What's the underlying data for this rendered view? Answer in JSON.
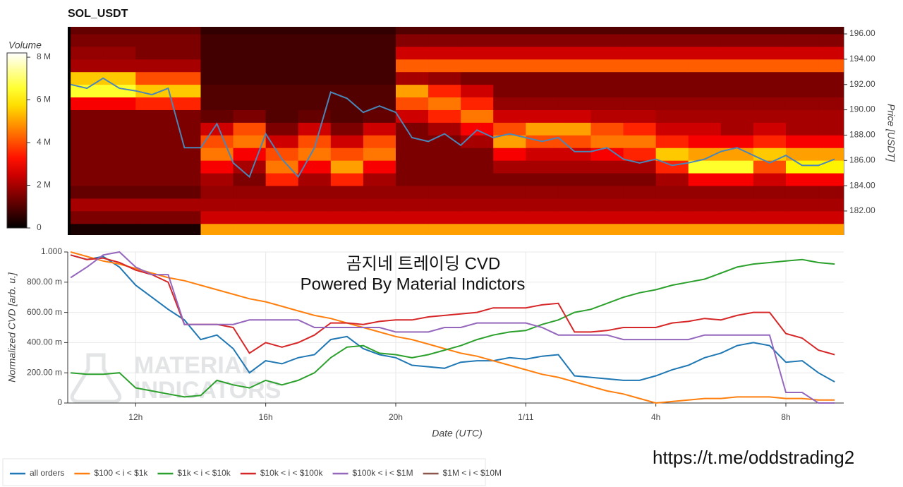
{
  "chart_data": [
    {
      "type": "heatmap",
      "title": "SOL_USDT",
      "xlim": [
        -14.09,
        9.78
      ],
      "ylim": [
        180.1,
        196.56
      ],
      "yticks": [
        {
          "value": 182,
          "label": "182.00"
        },
        {
          "value": 184,
          "label": "184.00"
        },
        {
          "value": 186,
          "label": "186.00"
        },
        {
          "value": 188,
          "label": "188.00"
        },
        {
          "value": 190,
          "label": "190.00"
        },
        {
          "value": 192,
          "label": "192.00"
        },
        {
          "value": 194,
          "label": "194.00"
        },
        {
          "value": 196,
          "label": "196.00"
        }
      ],
      "y_axis_label": "Price [USDT]",
      "y_axis_position": "right",
      "colormap": "hot",
      "colorbar": {
        "label": "Volume",
        "lim": [
          0,
          8.2
        ],
        "ticks": [
          0,
          {
            "value": 2,
            "label": "2 M"
          },
          {
            "value": 4,
            "label": "4 M"
          },
          {
            "value": 6,
            "label": "6 M"
          },
          {
            "value": 8,
            "label": "8 M"
          }
        ]
      },
      "x_bins": [
        -14,
        -13,
        -12,
        -11,
        -10,
        -9,
        -8,
        -7,
        -6,
        -5,
        -4,
        -3,
        -2,
        -1,
        0,
        1,
        2,
        3,
        4,
        5,
        6,
        7,
        8,
        9,
        10
      ],
      "y_bins": [
        180,
        181,
        182,
        183,
        184,
        185,
        186,
        187,
        188,
        189,
        190,
        191,
        192,
        193,
        194,
        195,
        196,
        197
      ],
      "z": [
        [
          0.3,
          0.3,
          0.3,
          0.3,
          5.0,
          5.0,
          5.0,
          5.0,
          5.0,
          5.0,
          5.0,
          5.0,
          5.0,
          5.0,
          5.0,
          5.0,
          5.0,
          5.0,
          5.0,
          5.0,
          5.0,
          5.0,
          5.0,
          5.0
        ],
        [
          1.5,
          1.5,
          1.5,
          1.5,
          2.5,
          2.5,
          2.5,
          2.5,
          2.5,
          2.5,
          2.5,
          2.5,
          2.5,
          2.5,
          2.5,
          2.5,
          2.5,
          2.5,
          2.5,
          2.5,
          2.5,
          2.5,
          2.5,
          2.5
        ],
        [
          2.0,
          2.0,
          2.0,
          2.0,
          2.0,
          2.0,
          2.0,
          2.0,
          2.0,
          2.0,
          2.0,
          2.0,
          2.0,
          2.0,
          2.0,
          2.0,
          2.0,
          2.0,
          2.0,
          2.0,
          2.0,
          2.0,
          2.0,
          2.0
        ],
        [
          1.2,
          1.2,
          1.2,
          1.2,
          1.8,
          1.8,
          1.8,
          1.8,
          1.8,
          1.8,
          1.8,
          1.8,
          1.8,
          1.8,
          1.8,
          1.8,
          1.8,
          1.8,
          1.8,
          1.8,
          1.8,
          1.8,
          1.8,
          1.8
        ],
        [
          1.5,
          1.5,
          1.5,
          1.5,
          2.0,
          1.5,
          3.5,
          2.0,
          3.5,
          2.0,
          1.5,
          1.5,
          1.5,
          1.5,
          1.5,
          1.5,
          1.5,
          1.5,
          2.0,
          3.0,
          3.0,
          2.5,
          3.0,
          3.0
        ],
        [
          1.5,
          1.5,
          1.5,
          1.5,
          3.0,
          2.0,
          4.5,
          3.0,
          5.0,
          3.0,
          1.5,
          1.5,
          1.5,
          2.0,
          2.0,
          2.0,
          2.0,
          2.0,
          3.5,
          6.5,
          6.5,
          4.0,
          6.0,
          6.0
        ],
        [
          1.5,
          1.5,
          1.5,
          1.5,
          4.5,
          3.0,
          4.0,
          4.5,
          4.0,
          4.5,
          1.5,
          1.5,
          1.5,
          3.0,
          2.5,
          2.5,
          3.0,
          3.5,
          5.5,
          5.0,
          5.0,
          5.5,
          5.0,
          5.0
        ],
        [
          1.5,
          1.5,
          1.5,
          1.5,
          4.0,
          4.5,
          2.5,
          4.0,
          2.5,
          4.0,
          1.5,
          1.5,
          2.0,
          5.0,
          4.0,
          4.0,
          4.5,
          4.5,
          3.5,
          3.0,
          3.0,
          3.5,
          3.0,
          3.0
        ],
        [
          1.5,
          1.5,
          1.5,
          1.5,
          2.5,
          4.0,
          1.5,
          2.5,
          1.5,
          2.5,
          1.5,
          2.0,
          3.0,
          4.0,
          5.0,
          5.0,
          4.0,
          3.5,
          2.5,
          2.5,
          2.0,
          2.5,
          2.0,
          2.0
        ],
        [
          1.5,
          1.5,
          1.5,
          1.5,
          1.2,
          1.5,
          1.0,
          1.2,
          1.0,
          1.2,
          2.5,
          3.5,
          4.5,
          2.5,
          2.5,
          2.5,
          2.2,
          2.2,
          2.0,
          2.0,
          2.0,
          2.0,
          2.0,
          2.0
        ],
        [
          3.0,
          3.0,
          3.5,
          3.5,
          1.0,
          1.0,
          1.0,
          1.0,
          1.0,
          1.0,
          4.0,
          4.5,
          3.5,
          1.8,
          1.8,
          1.8,
          1.8,
          1.8,
          1.8,
          1.8,
          1.8,
          1.8,
          1.8,
          1.8
        ],
        [
          6.5,
          6.5,
          5.5,
          5.5,
          1.0,
          1.0,
          1.0,
          1.0,
          1.0,
          1.0,
          5.0,
          3.5,
          2.5,
          1.5,
          1.5,
          1.5,
          1.5,
          1.5,
          1.5,
          1.5,
          1.5,
          1.5,
          1.5,
          1.5
        ],
        [
          5.5,
          5.5,
          4.0,
          4.0,
          0.8,
          0.8,
          0.8,
          0.8,
          0.8,
          0.8,
          2.0,
          1.8,
          1.5,
          1.5,
          1.5,
          1.5,
          1.5,
          1.5,
          1.5,
          1.5,
          1.5,
          1.5,
          1.5,
          1.5
        ],
        [
          2.0,
          2.0,
          2.0,
          2.0,
          0.8,
          0.8,
          0.8,
          0.8,
          0.8,
          0.8,
          4.2,
          4.2,
          4.2,
          4.2,
          4.2,
          4.2,
          4.2,
          4.2,
          4.2,
          4.2,
          4.2,
          4.2,
          4.2,
          4.2
        ],
        [
          1.8,
          1.8,
          1.5,
          1.5,
          0.8,
          0.8,
          0.8,
          0.8,
          0.8,
          0.8,
          2.5,
          2.5,
          2.5,
          2.5,
          2.5,
          2.5,
          2.5,
          2.5,
          2.5,
          2.5,
          2.5,
          2.5,
          2.5,
          2.5
        ],
        [
          1.5,
          1.5,
          1.5,
          1.5,
          0.8,
          0.8,
          0.8,
          0.8,
          0.8,
          0.8,
          1.6,
          1.6,
          1.6,
          1.6,
          1.6,
          1.6,
          1.6,
          1.6,
          1.6,
          1.6,
          1.6,
          1.6,
          1.6,
          1.6
        ],
        [
          1.2,
          1.2,
          1.2,
          1.2,
          0.6,
          0.6,
          0.6,
          0.6,
          0.6,
          0.6,
          1.0,
          1.0,
          1.0,
          1.0,
          1.0,
          1.0,
          1.0,
          1.0,
          1.0,
          1.0,
          1.0,
          1.0,
          1.0,
          1.0
        ]
      ],
      "x": [
        -14,
        -13.5,
        -13,
        -12.5,
        -12,
        -11.5,
        -11,
        -10.5,
        -10,
        -9.5,
        -9,
        -8.5,
        -8,
        -7.5,
        -7,
        -6.5,
        -6,
        -5.5,
        -5,
        -4.5,
        -4,
        -3.5,
        -3,
        -2.5,
        -2,
        -1.5,
        -1,
        -0.5,
        0,
        0.5,
        1,
        1.5,
        2,
        2.5,
        3,
        3.5,
        4,
        4.5,
        5,
        5.5,
        6,
        6.5,
        7,
        7.5,
        8,
        8.5,
        9,
        9.5
      ],
      "values": [
        192.0,
        191.7,
        192.5,
        191.7,
        191.5,
        191.2,
        191.7,
        187.0,
        187.0,
        188.9,
        185.8,
        184.7,
        188.1,
        186.1,
        184.7,
        187.0,
        191.4,
        190.9,
        189.8,
        190.3,
        189.8,
        187.8,
        187.5,
        188.1,
        187.2,
        188.4,
        187.8,
        188.1,
        187.8,
        187.5,
        187.8,
        186.7,
        186.7,
        187.0,
        186.1,
        185.8,
        186.1,
        185.6,
        185.8,
        186.1,
        186.7,
        187.0,
        186.4,
        185.8,
        186.4,
        185.6,
        185.6,
        186.1
      ],
      "color": "#4a86b8"
    },
    {
      "type": "line",
      "title": "곰지네 트레이딩 CVD",
      "subtitle": "Powered By Material Indictors",
      "watermark": [
        "MATERIAL",
        "INDICATORS"
      ],
      "x_axis_label": "Date (UTC)",
      "y_axis_label": "Normalized CVD [arb. u.]",
      "xlim": [
        -14.09,
        9.78
      ],
      "ylim": [
        0,
        1
      ],
      "xticks": [
        {
          "value": -12,
          "label": "12h"
        },
        {
          "value": -8,
          "label": "16h"
        },
        {
          "value": -4,
          "label": "20h"
        },
        {
          "value": 0,
          "label": "1/11"
        },
        {
          "value": 4,
          "label": "4h"
        },
        {
          "value": 8,
          "label": "8h"
        }
      ],
      "yticks": [
        0,
        {
          "value": 0.2,
          "label": "200.00 m"
        },
        {
          "value": 0.4,
          "label": "400.00 m"
        },
        {
          "value": 0.6,
          "label": "600.00 m"
        },
        {
          "value": 0.8,
          "label": "800.00 m"
        },
        {
          "value": 1,
          "label": "1.000"
        }
      ],
      "grid": true,
      "legend": "bottom-left",
      "x": [
        -14,
        -13.5,
        -13,
        -12.5,
        -12,
        -11.5,
        -11,
        -10.5,
        -10,
        -9.5,
        -9,
        -8.5,
        -8,
        -7.5,
        -7,
        -6.5,
        -6,
        -5.5,
        -5,
        -4.5,
        -4,
        -3.5,
        -3,
        -2.5,
        -2,
        -1.5,
        -1,
        -0.5,
        0,
        0.5,
        1,
        1.5,
        2,
        2.5,
        3,
        3.5,
        4,
        4.5,
        5,
        5.5,
        6,
        6.5,
        7,
        7.5,
        8,
        8.5,
        9,
        9.5
      ],
      "series": [
        {
          "name": "all orders",
          "color": "#1f77b4",
          "values": [
            0.98,
            0.95,
            0.97,
            0.9,
            0.78,
            0.7,
            0.62,
            0.55,
            0.42,
            0.45,
            0.36,
            0.2,
            0.28,
            0.26,
            0.3,
            0.32,
            0.42,
            0.44,
            0.36,
            0.32,
            0.3,
            0.25,
            0.24,
            0.23,
            0.27,
            0.28,
            0.28,
            0.3,
            0.29,
            0.31,
            0.32,
            0.18,
            0.17,
            0.16,
            0.15,
            0.15,
            0.18,
            0.22,
            0.25,
            0.3,
            0.33,
            0.38,
            0.4,
            0.38,
            0.27,
            0.28,
            0.2,
            0.14
          ]
        },
        {
          "name": "$100 < i < $1k",
          "color": "#ff7f0e",
          "values": [
            1.0,
            0.97,
            0.94,
            0.92,
            0.89,
            0.86,
            0.83,
            0.81,
            0.78,
            0.75,
            0.72,
            0.69,
            0.67,
            0.64,
            0.61,
            0.58,
            0.56,
            0.53,
            0.5,
            0.47,
            0.44,
            0.42,
            0.39,
            0.36,
            0.33,
            0.31,
            0.28,
            0.25,
            0.22,
            0.19,
            0.17,
            0.14,
            0.11,
            0.08,
            0.06,
            0.03,
            0.0,
            0.01,
            0.02,
            0.03,
            0.03,
            0.04,
            0.04,
            0.04,
            0.03,
            0.03,
            0.02,
            0.02
          ]
        },
        {
          "name": "$1k < i < $10k",
          "color": "#2ca02c",
          "values": [
            0.2,
            0.19,
            0.19,
            0.2,
            0.1,
            0.08,
            0.06,
            0.04,
            0.05,
            0.15,
            0.12,
            0.1,
            0.15,
            0.12,
            0.15,
            0.2,
            0.3,
            0.37,
            0.38,
            0.33,
            0.32,
            0.3,
            0.32,
            0.35,
            0.38,
            0.42,
            0.45,
            0.47,
            0.48,
            0.52,
            0.55,
            0.6,
            0.62,
            0.66,
            0.7,
            0.73,
            0.75,
            0.78,
            0.8,
            0.82,
            0.86,
            0.9,
            0.92,
            0.93,
            0.94,
            0.95,
            0.93,
            0.92
          ]
        },
        {
          "name": "$10k < i < $100k",
          "color": "#d62728",
          "values": [
            0.98,
            0.95,
            0.96,
            0.93,
            0.88,
            0.85,
            0.8,
            0.52,
            0.52,
            0.52,
            0.5,
            0.33,
            0.4,
            0.37,
            0.4,
            0.45,
            0.53,
            0.53,
            0.52,
            0.54,
            0.55,
            0.55,
            0.57,
            0.58,
            0.59,
            0.6,
            0.63,
            0.63,
            0.63,
            0.65,
            0.66,
            0.47,
            0.47,
            0.48,
            0.5,
            0.5,
            0.5,
            0.53,
            0.54,
            0.56,
            0.55,
            0.58,
            0.6,
            0.6,
            0.46,
            0.43,
            0.35,
            0.32
          ]
        },
        {
          "name": "$100k < i < $1M",
          "color": "#9467bd",
          "values": [
            0.83,
            0.9,
            0.98,
            1.0,
            0.9,
            0.85,
            0.85,
            0.52,
            0.52,
            0.52,
            0.52,
            0.55,
            0.55,
            0.55,
            0.55,
            0.5,
            0.5,
            0.5,
            0.5,
            0.5,
            0.47,
            0.47,
            0.47,
            0.5,
            0.5,
            0.53,
            0.53,
            0.53,
            0.53,
            0.5,
            0.45,
            0.45,
            0.45,
            0.45,
            0.42,
            0.42,
            0.42,
            0.42,
            0.42,
            0.45,
            0.45,
            0.45,
            0.45,
            0.45,
            0.07,
            0.07,
            0.0,
            0.0
          ]
        },
        {
          "name": "$1M < i < $10M",
          "color": "#8c564b",
          "values": [
            null,
            null,
            null,
            null,
            null,
            null,
            null,
            null,
            null,
            null,
            null,
            null,
            null,
            null,
            null,
            null,
            null,
            null,
            null,
            null,
            null,
            null,
            null,
            null,
            null,
            null,
            null,
            null,
            null,
            null,
            null,
            null,
            null,
            null,
            null,
            null,
            null,
            null,
            null,
            null,
            null,
            null,
            null,
            null,
            null,
            null,
            null,
            null
          ]
        }
      ]
    },
    {
      "type": "text",
      "text": "https://t.me/oddstrading2"
    }
  ]
}
